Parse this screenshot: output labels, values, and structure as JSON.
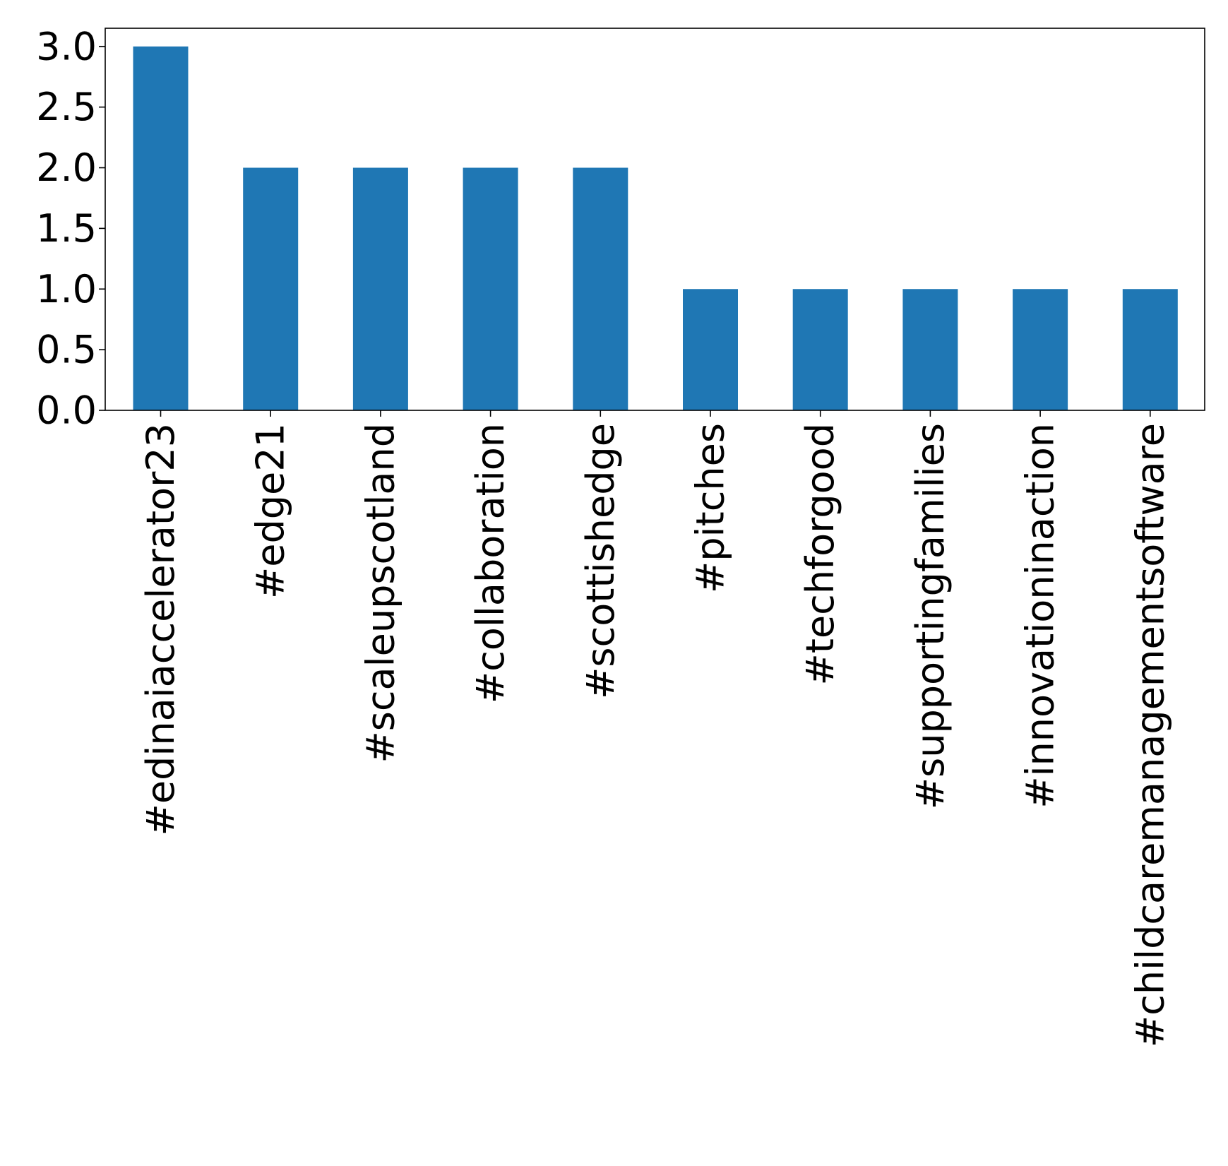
{
  "chart_data": {
    "type": "bar",
    "title": "",
    "xlabel": "",
    "ylabel": "",
    "categories": [
      "#edinaiaccelerator23",
      "#edge21",
      "#scaleupscotland",
      "#collaboration",
      "#scottishedge",
      "#pitches",
      "#techforgood",
      "#supportingfamilies",
      "#innovationinaction",
      "#childcaremanagementsoftware"
    ],
    "values": [
      3,
      2,
      2,
      2,
      2,
      1,
      1,
      1,
      1,
      1
    ],
    "ylim": [
      0,
      3.15
    ],
    "yticks": [
      0.0,
      0.5,
      1.0,
      1.5,
      2.0,
      2.5,
      3.0
    ],
    "ytick_labels": [
      "0.0",
      "0.5",
      "1.0",
      "1.5",
      "2.0",
      "2.5",
      "3.0"
    ],
    "bar_color": "#1f77b4",
    "grid": false,
    "legend": "none"
  }
}
